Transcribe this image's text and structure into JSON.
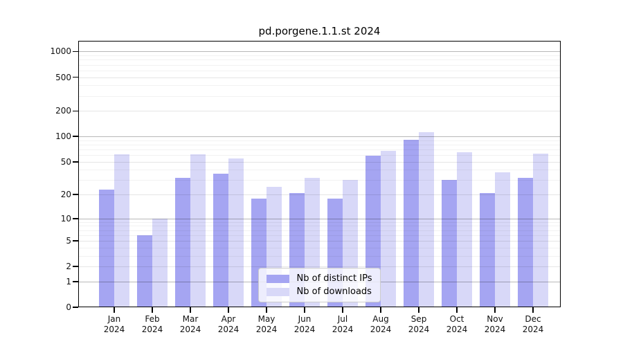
{
  "title": "pd.porgene.1.1.st 2024",
  "chart_data": {
    "type": "bar",
    "title": "pd.porgene.1.1.st 2024",
    "categories": [
      "Jan",
      "Feb",
      "Mar",
      "Apr",
      "May",
      "Jun",
      "Jul",
      "Aug",
      "Sep",
      "Oct",
      "Nov",
      "Dec"
    ],
    "category_year": "2024",
    "series": [
      {
        "name": "Nb of distinct IPs",
        "color": "#a5a5f2",
        "values": [
          23,
          6,
          32,
          36,
          18,
          21,
          18,
          59,
          91,
          30,
          21,
          32
        ]
      },
      {
        "name": "Nb of downloads",
        "color": "#d8d8f8",
        "values": [
          61,
          10,
          61,
          55,
          25,
          32,
          30,
          68,
          113,
          65,
          37,
          62
        ]
      }
    ],
    "yscale": "log1p",
    "ylim": [
      0,
      1000
    ],
    "yticks": [
      0,
      1,
      2,
      5,
      10,
      20,
      50,
      100,
      200,
      500,
      1000
    ],
    "yticks_decade": [
      1,
      10,
      100,
      1000
    ],
    "yticks_minor": [
      3,
      4,
      6,
      7,
      8,
      9,
      30,
      40,
      60,
      70,
      80,
      90,
      300,
      400,
      600,
      700,
      800,
      900
    ],
    "grid": true,
    "legend_position": "lower center"
  }
}
